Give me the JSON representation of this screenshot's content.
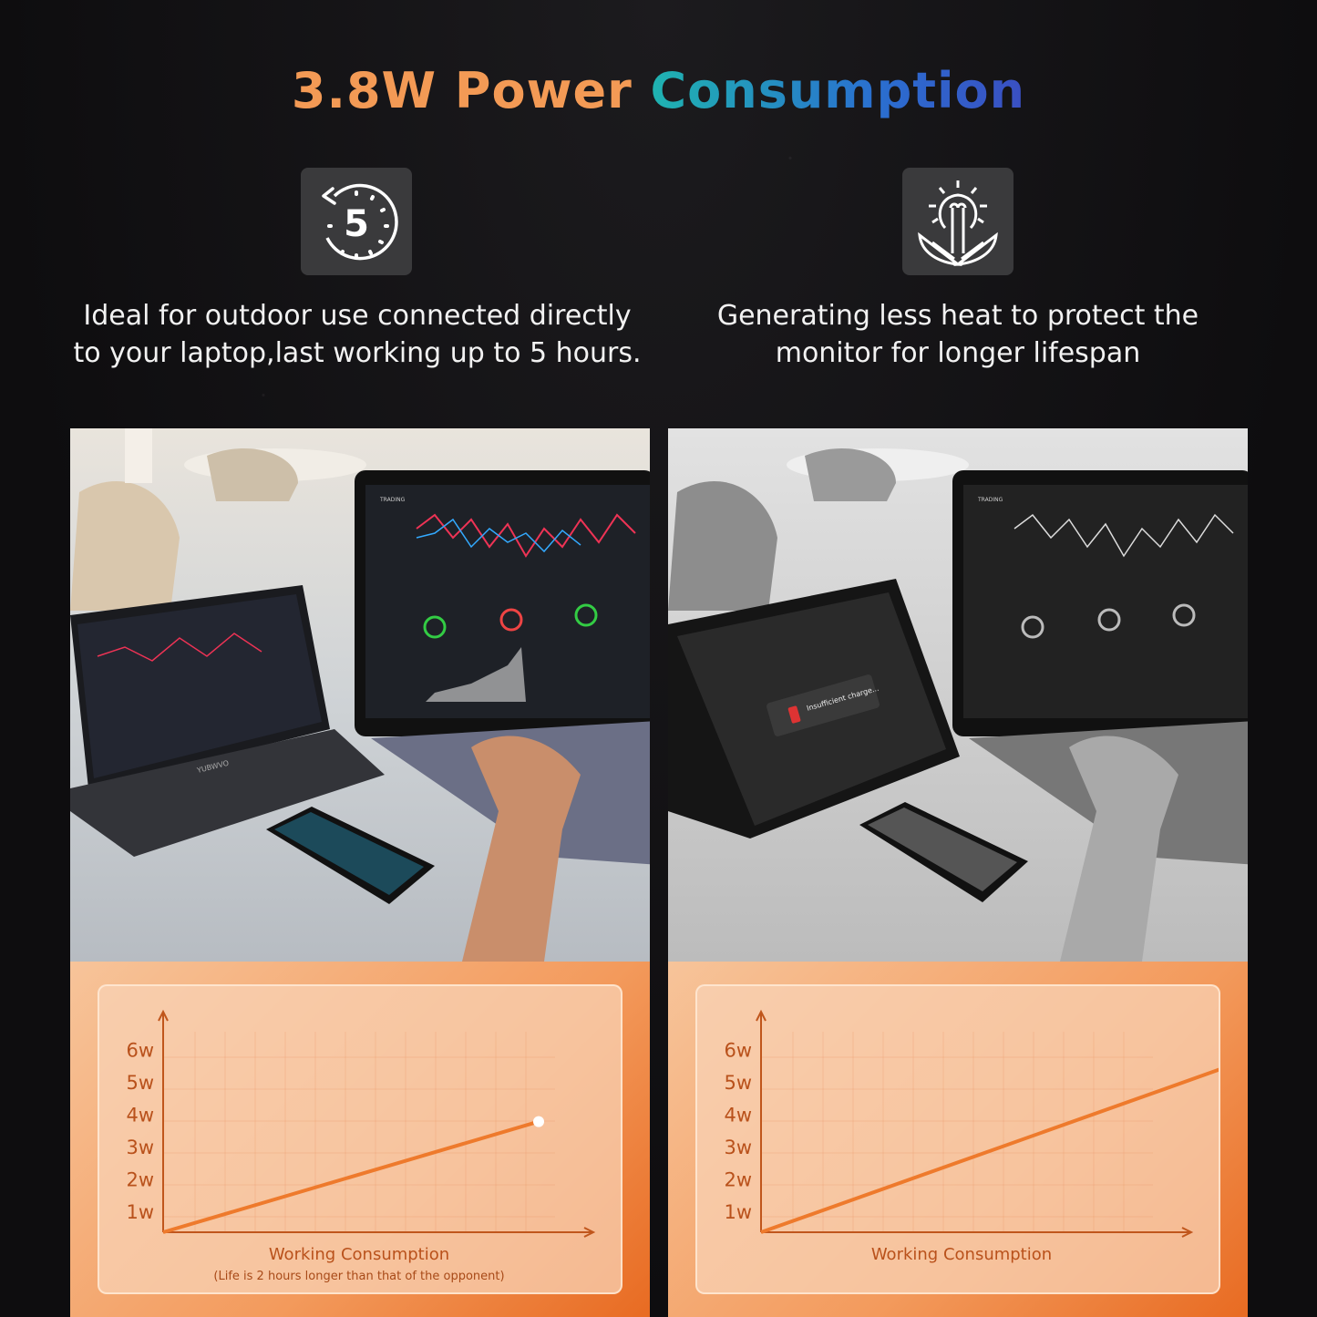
{
  "header": {
    "title_part1": "3.8W Power",
    "title_part2": "Consumption"
  },
  "features": [
    {
      "icon": "five-hour-timer-icon",
      "line1": "Ideal for outdoor use connected directly",
      "line2": "to your laptop,last working up to 5 hours."
    },
    {
      "icon": "eco-lightbulb-leaf-icon",
      "line1": "Generating less heat to protect the",
      "line2": "monitor for longer lifespan"
    }
  ],
  "photos": {
    "left": {
      "brand": "YUBWVO",
      "screen_label": "TRADING"
    },
    "right": {
      "warning": "Insufficient charge...",
      "screen_label": "TRADING"
    }
  },
  "colors": {
    "accent_orange": "#f39a55",
    "line": "#ee7a2c",
    "axis": "#c0561c"
  },
  "chart_data": [
    {
      "type": "line",
      "x": [
        0,
        1
      ],
      "values": [
        0,
        3.8
      ],
      "y_ticks": [
        "1w",
        "2w",
        "3w",
        "4w",
        "5w",
        "6w"
      ],
      "ylim": [
        0,
        6.5
      ],
      "xlabel": "Working Consumption",
      "note": "(Life is 2 hours longer than that of the opponent)",
      "grid": true
    },
    {
      "type": "line",
      "x": [
        0,
        1
      ],
      "values": [
        0,
        6
      ],
      "y_ticks": [
        "1w",
        "2w",
        "3w",
        "4w",
        "5w",
        "6w"
      ],
      "ylim": [
        0,
        6.5
      ],
      "xlabel": "Working Consumption",
      "grid": true
    }
  ]
}
